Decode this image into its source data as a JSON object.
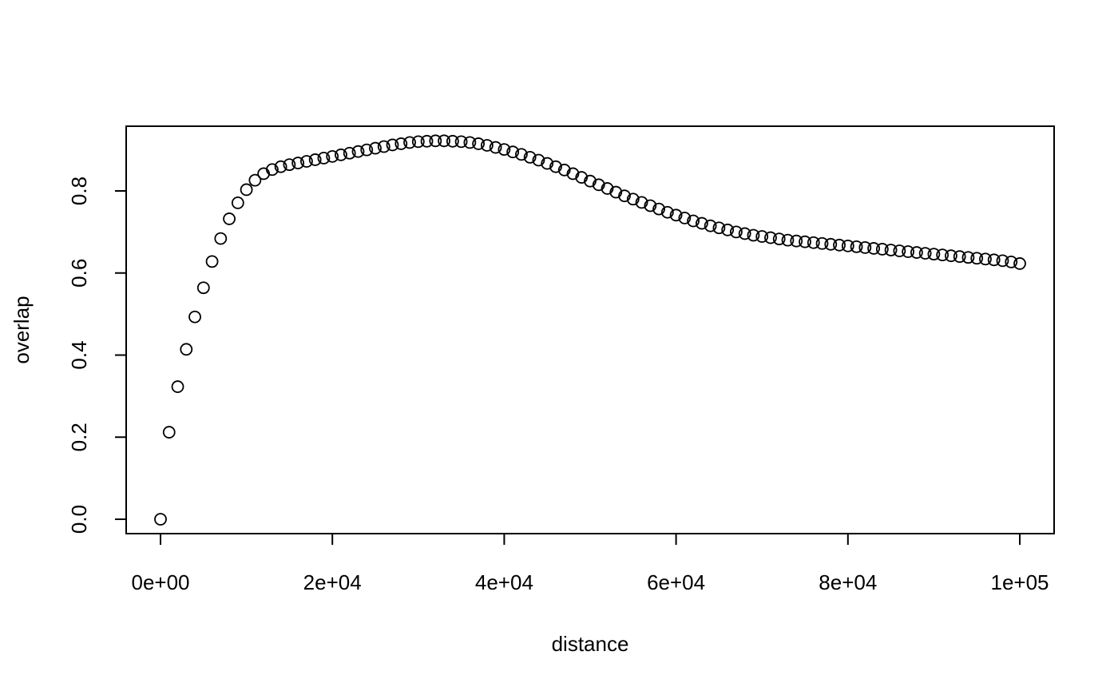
{
  "chart_data": {
    "type": "scatter",
    "title": "",
    "xlabel": "distance",
    "ylabel": "overlap",
    "xlim": [
      0,
      100000
    ],
    "ylim": [
      0,
      0.92
    ],
    "x_ticks": [
      0,
      20000,
      40000,
      60000,
      80000,
      100000
    ],
    "x_tick_labels": [
      "0e+00",
      "2e+04",
      "4e+04",
      "6e+04",
      "8e+04",
      "1e+05"
    ],
    "y_ticks": [
      0.0,
      0.2,
      0.4,
      0.6,
      0.8
    ],
    "y_tick_labels": [
      "0.0",
      "0.2",
      "0.4",
      "0.6",
      "0.8"
    ],
    "grid": false,
    "marker": "open-circle",
    "x": [
      0,
      1000,
      2000,
      3000,
      4000,
      5000,
      6000,
      7000,
      8000,
      9000,
      10000,
      11000,
      12000,
      13000,
      14000,
      15000,
      16000,
      17000,
      18000,
      19000,
      20000,
      21000,
      22000,
      23000,
      24000,
      25000,
      26000,
      27000,
      28000,
      29000,
      30000,
      31000,
      32000,
      33000,
      34000,
      35000,
      36000,
      37000,
      38000,
      39000,
      40000,
      41000,
      42000,
      43000,
      44000,
      45000,
      46000,
      47000,
      48000,
      49000,
      50000,
      51000,
      52000,
      53000,
      54000,
      55000,
      56000,
      57000,
      58000,
      59000,
      60000,
      61000,
      62000,
      63000,
      64000,
      65000,
      66000,
      67000,
      68000,
      69000,
      70000,
      71000,
      72000,
      73000,
      74000,
      75000,
      76000,
      77000,
      78000,
      79000,
      80000,
      81000,
      82000,
      83000,
      84000,
      85000,
      86000,
      87000,
      88000,
      89000,
      90000,
      91000,
      92000,
      93000,
      94000,
      95000,
      96000,
      97000,
      98000,
      99000,
      100000
    ],
    "y": [
      0.0,
      0.212,
      0.323,
      0.414,
      0.493,
      0.564,
      0.628,
      0.684,
      0.732,
      0.771,
      0.803,
      0.826,
      0.842,
      0.852,
      0.859,
      0.864,
      0.868,
      0.872,
      0.876,
      0.88,
      0.884,
      0.888,
      0.892,
      0.896,
      0.9,
      0.904,
      0.908,
      0.912,
      0.915,
      0.918,
      0.92,
      0.921,
      0.922,
      0.922,
      0.921,
      0.92,
      0.918,
      0.915,
      0.911,
      0.906,
      0.901,
      0.895,
      0.889,
      0.882,
      0.875,
      0.867,
      0.859,
      0.851,
      0.842,
      0.833,
      0.824,
      0.815,
      0.806,
      0.797,
      0.788,
      0.78,
      0.772,
      0.764,
      0.756,
      0.748,
      0.741,
      0.734,
      0.727,
      0.721,
      0.715,
      0.71,
      0.705,
      0.7,
      0.696,
      0.692,
      0.689,
      0.686,
      0.683,
      0.68,
      0.678,
      0.676,
      0.674,
      0.672,
      0.67,
      0.668,
      0.666,
      0.664,
      0.662,
      0.66,
      0.658,
      0.656,
      0.654,
      0.652,
      0.65,
      0.648,
      0.646,
      0.644,
      0.642,
      0.64,
      0.638,
      0.636,
      0.634,
      0.632,
      0.63,
      0.627,
      0.623
    ]
  }
}
